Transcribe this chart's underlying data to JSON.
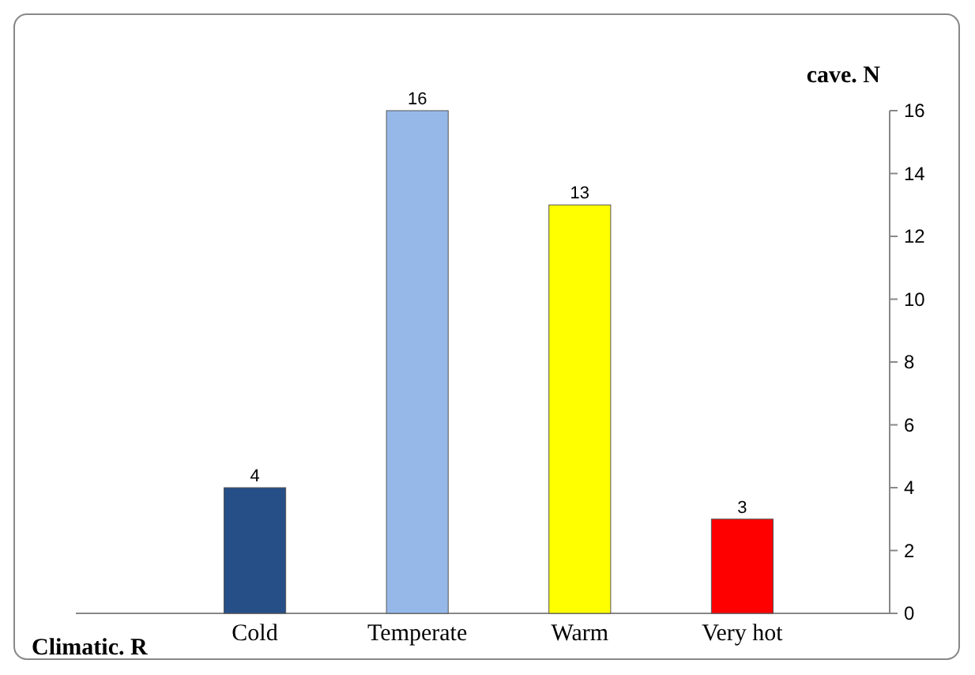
{
  "chart_data": {
    "type": "bar",
    "xlabel": "Climatic. R",
    "ylabel": "cave. N",
    "categories": [
      "Cold",
      "Temperate",
      "Warm",
      "Very hot"
    ],
    "values": [
      4,
      16,
      13,
      3
    ],
    "colors": [
      "#264f88",
      "#95b8e8",
      "#ffff00",
      "#ff0000"
    ],
    "ylim": [
      0,
      16
    ],
    "yticks": [
      0,
      2,
      4,
      6,
      8,
      10,
      12,
      14,
      16
    ],
    "grid": false,
    "data_labels": true
  }
}
